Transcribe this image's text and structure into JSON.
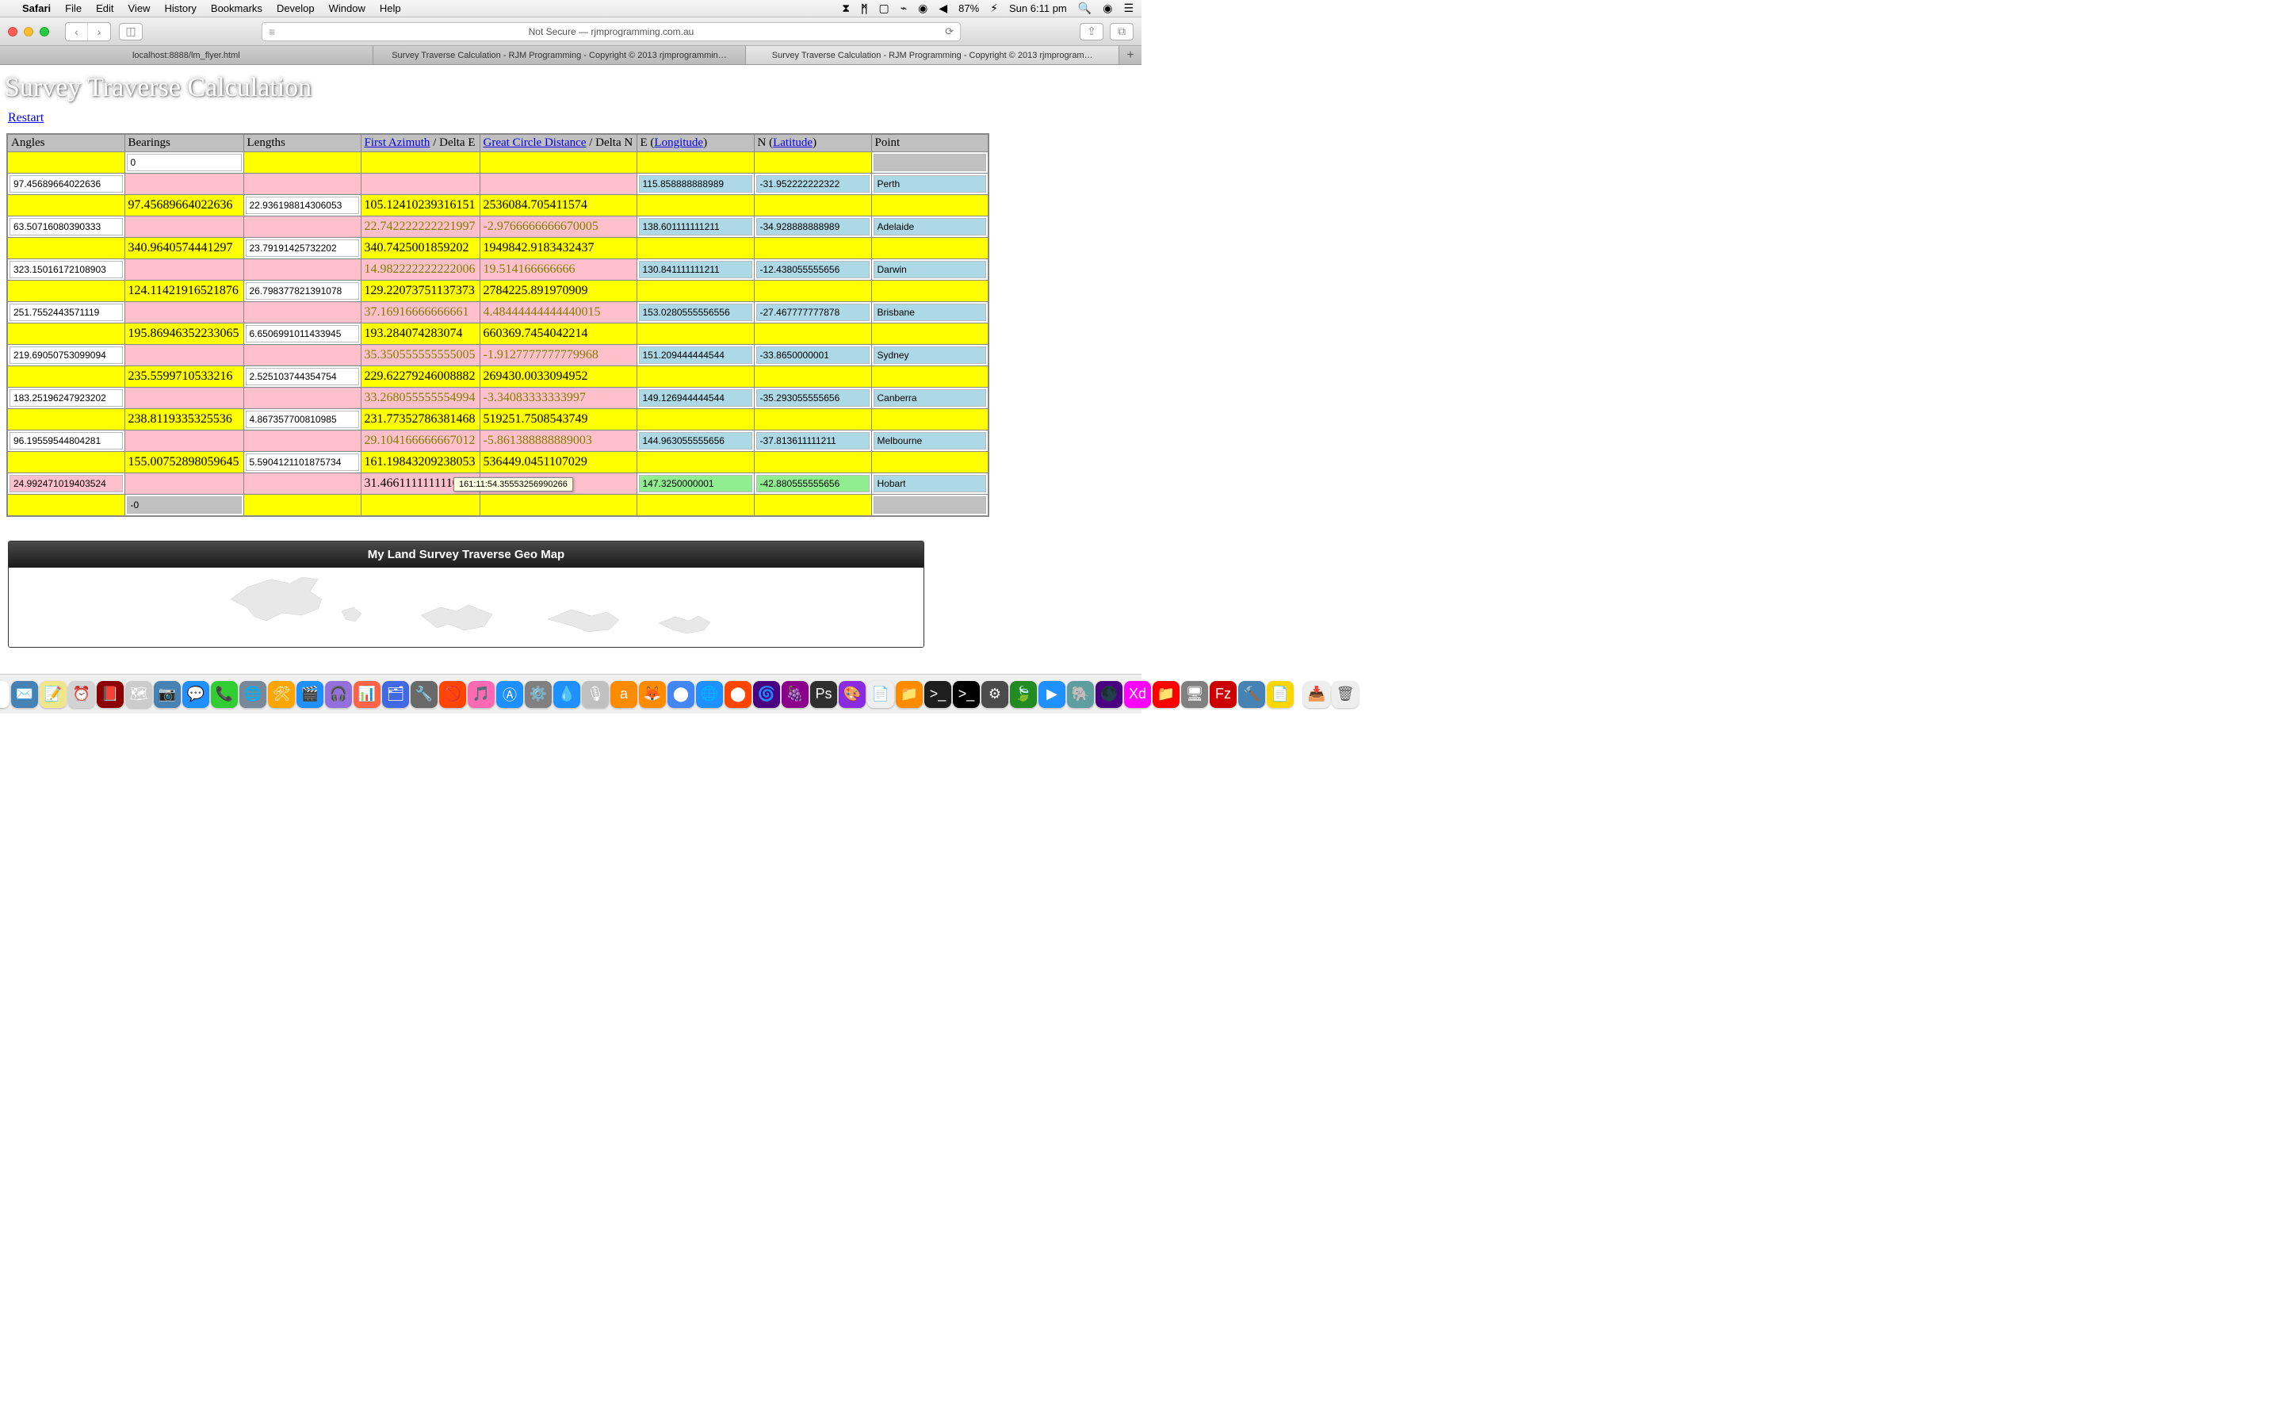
{
  "menubar": {
    "app": "Safari",
    "items": [
      "File",
      "Edit",
      "View",
      "History",
      "Bookmarks",
      "Develop",
      "Window",
      "Help"
    ],
    "battery": "87%",
    "clock": "Sun 6:11 pm"
  },
  "browser": {
    "url": "Not Secure — rjmprogramming.com.au",
    "tabs": [
      "localhost:8888/lm_flyer.html",
      "Survey Traverse Calculation - RJM Programming - Copyright © 2013 rjmprogrammin…",
      "Survey Traverse Calculation - RJM Programming - Copyright © 2013 rjmprogram…"
    ],
    "activeTab": 2
  },
  "page": {
    "title": "Survey Traverse Calculation",
    "restart": "Restart",
    "tooltip": "161:11:54.35553256990266",
    "geomap_title": "My Land Survey Traverse Geo Map"
  },
  "headers": {
    "angles": "Angles",
    "bearings": "Bearings",
    "lengths": "Lengths",
    "first_azimuth": "First Azimuth",
    "delta_e": " / Delta E ",
    "gcd": "Great Circle Distance",
    "delta_n": " / Delta N ",
    "e_label": "E (",
    "longitude": "Longitude",
    "e_close": ")",
    "n_label": "N (",
    "latitude": "Latitude",
    "n_close": ")",
    "point": "Point"
  },
  "rows": [
    {
      "type": "start",
      "bearing": "0"
    },
    {
      "type": "point",
      "angle": "97.45689664022636",
      "e": "115.858888888989",
      "n": "-31.952222222322",
      "point": "Perth"
    },
    {
      "type": "leg",
      "bearing": "97.45689664022636",
      "length": "22.936198814306053",
      "de": "105.12410239316151",
      "dn": "2536084.705411574"
    },
    {
      "type": "point",
      "angle": "63.50716080390333",
      "de_olive": "22.742222222221997",
      "dn_olive": "-2.9766666666670005",
      "e": "138.601111111211",
      "n": "-34.928888888989",
      "point": "Adelaide"
    },
    {
      "type": "leg",
      "bearing": "340.9640574441297",
      "length": "23.79191425732202",
      "de": "340.7425001859202",
      "dn": "1949842.9183432437"
    },
    {
      "type": "point",
      "angle": "323.15016172108903",
      "de_olive": "14.982222222222006",
      "dn_olive": "19.514166666666",
      "e": "130.841111111211",
      "n": "-12.438055555656",
      "point": "Darwin"
    },
    {
      "type": "leg",
      "bearing": "124.11421916521876",
      "length": "26.798377821391078",
      "de": "129.22073751137373",
      "dn": "2784225.891970909"
    },
    {
      "type": "point",
      "angle": "251.7552443571119",
      "de_olive": "37.16916666666661",
      "dn_olive": "4.48444444444440015",
      "e": "153.0280555556556",
      "n": "-27.467777777878",
      "point": "Brisbane"
    },
    {
      "type": "leg",
      "bearing": "195.86946352233065",
      "length": "6.6506991011433945",
      "de": "193.284074283074",
      "dn": "660369.7454042214"
    },
    {
      "type": "point",
      "angle": "219.69050753099094",
      "de_olive": "35.350555555555005",
      "dn_olive": "-1.9127777777779968",
      "e": "151.209444444544",
      "n": "-33.8650000001",
      "point": "Sydney"
    },
    {
      "type": "leg",
      "bearing": "235.5599710533216",
      "length": "2.525103744354754",
      "de": "229.62279246008882",
      "dn": "269430.0033094952"
    },
    {
      "type": "point",
      "angle": "183.25196247923202",
      "de_olive": "33.268055555554994",
      "dn_olive": "-3.34083333333997",
      "e": "149.126944444544",
      "n": "-35.293055555656",
      "point": "Canberra"
    },
    {
      "type": "leg",
      "bearing": "238.8119335325536",
      "length": "4.867357700810985",
      "de": "231.77352786381468",
      "dn": "519251.7508543749"
    },
    {
      "type": "point",
      "angle": "96.19559544804281",
      "de_olive": "29.104166666667012",
      "dn_olive": "-5.861388888889003",
      "e": "144.963055555656",
      "n": "-37.813611111211",
      "point": "Melbourne"
    },
    {
      "type": "leg",
      "bearing": "155.00752898059645",
      "length": "5.5904121101875734",
      "de": "161.19843209238053",
      "dn": "536449.0451107029"
    },
    {
      "type": "point_last",
      "angle": "24.992471019403524",
      "de": "31.4661111111110",
      "dn": "002",
      "e": "147.3250000001",
      "n": "-42.880555555656",
      "point": "Hobart",
      "green": true
    },
    {
      "type": "end",
      "bearing": "-0"
    }
  ],
  "dock": {
    "items": [
      {
        "c": "#1e90ff",
        "g": "😀"
      },
      {
        "c": "#6a5acd",
        "g": "◉"
      },
      {
        "c": "#808080",
        "g": "🚀"
      },
      {
        "c": "#4169e1",
        "g": "🧭"
      },
      {
        "c": "#2f4f4f",
        "g": "📬"
      },
      {
        "c": "#7fff00",
        "g": "💬"
      },
      {
        "c": "#deb887",
        "g": "📒"
      },
      {
        "c": "#ffffff",
        "g": "🗓"
      },
      {
        "c": "#4682b4",
        "g": "✉️"
      },
      {
        "c": "#f0e68c",
        "g": "📝"
      },
      {
        "c": "#d3d3d3",
        "g": "⏰"
      },
      {
        "c": "#8b0000",
        "g": "📕"
      },
      {
        "c": "#cccccc",
        "g": "🗺"
      },
      {
        "c": "#4682b4",
        "g": "📷"
      },
      {
        "c": "#1e90ff",
        "g": "💬"
      },
      {
        "c": "#32cd32",
        "g": "📞"
      },
      {
        "c": "#778899",
        "g": "🌐"
      },
      {
        "c": "#ffa500",
        "g": "🛠"
      },
      {
        "c": "#1e90ff",
        "g": "🎬"
      },
      {
        "c": "#9370db",
        "g": "🎧"
      },
      {
        "c": "#ff6347",
        "g": "📊"
      },
      {
        "c": "#4169e1",
        "g": "🗂"
      },
      {
        "c": "#696969",
        "g": "🔧"
      },
      {
        "c": "#ff4500",
        "g": "🚫"
      },
      {
        "c": "#ff69b4",
        "g": "🎵"
      },
      {
        "c": "#1e90ff",
        "g": "Ⓐ"
      },
      {
        "c": "#808080",
        "g": "⚙️"
      },
      {
        "c": "#1e90ff",
        "g": "💧"
      },
      {
        "c": "#c0c0c0",
        "g": "🎙"
      },
      {
        "c": "#ff8c00",
        "g": "a"
      },
      {
        "c": "#ff8c00",
        "g": "🦊"
      },
      {
        "c": "#4285f4",
        "g": "⬤"
      },
      {
        "c": "#1e90ff",
        "g": "🌐"
      },
      {
        "c": "#ff4500",
        "g": "⬤"
      },
      {
        "c": "#4b0082",
        "g": "🌀"
      },
      {
        "c": "#8b008b",
        "g": "🍇"
      },
      {
        "c": "#2f2f2f",
        "g": "Ps"
      },
      {
        "c": "#8a2be2",
        "g": "🎨"
      },
      {
        "c": "#eee",
        "g": "📄"
      },
      {
        "c": "#ff8c00",
        "g": "📁"
      },
      {
        "c": "#1e1e1e",
        "g": ">_"
      },
      {
        "c": "#000",
        "g": ">_"
      },
      {
        "c": "#4b4b4b",
        "g": "⚙"
      },
      {
        "c": "#228b22",
        "g": "🍃"
      },
      {
        "c": "#1e90ff",
        "g": "▶"
      },
      {
        "c": "#5f9ea0",
        "g": "🐘"
      },
      {
        "c": "#4b0082",
        "g": "🌑"
      },
      {
        "c": "#ff00ff",
        "g": "Xd"
      },
      {
        "c": "#ff0000",
        "g": "📁"
      },
      {
        "c": "#808080",
        "g": "🖥"
      },
      {
        "c": "#c00",
        "g": "Fz"
      },
      {
        "c": "#4682b4",
        "g": "🔨"
      },
      {
        "c": "#ffd700",
        "g": "📄"
      }
    ],
    "right": [
      {
        "c": "#eee",
        "g": "📥"
      },
      {
        "c": "#eee",
        "g": "🗑"
      }
    ]
  }
}
